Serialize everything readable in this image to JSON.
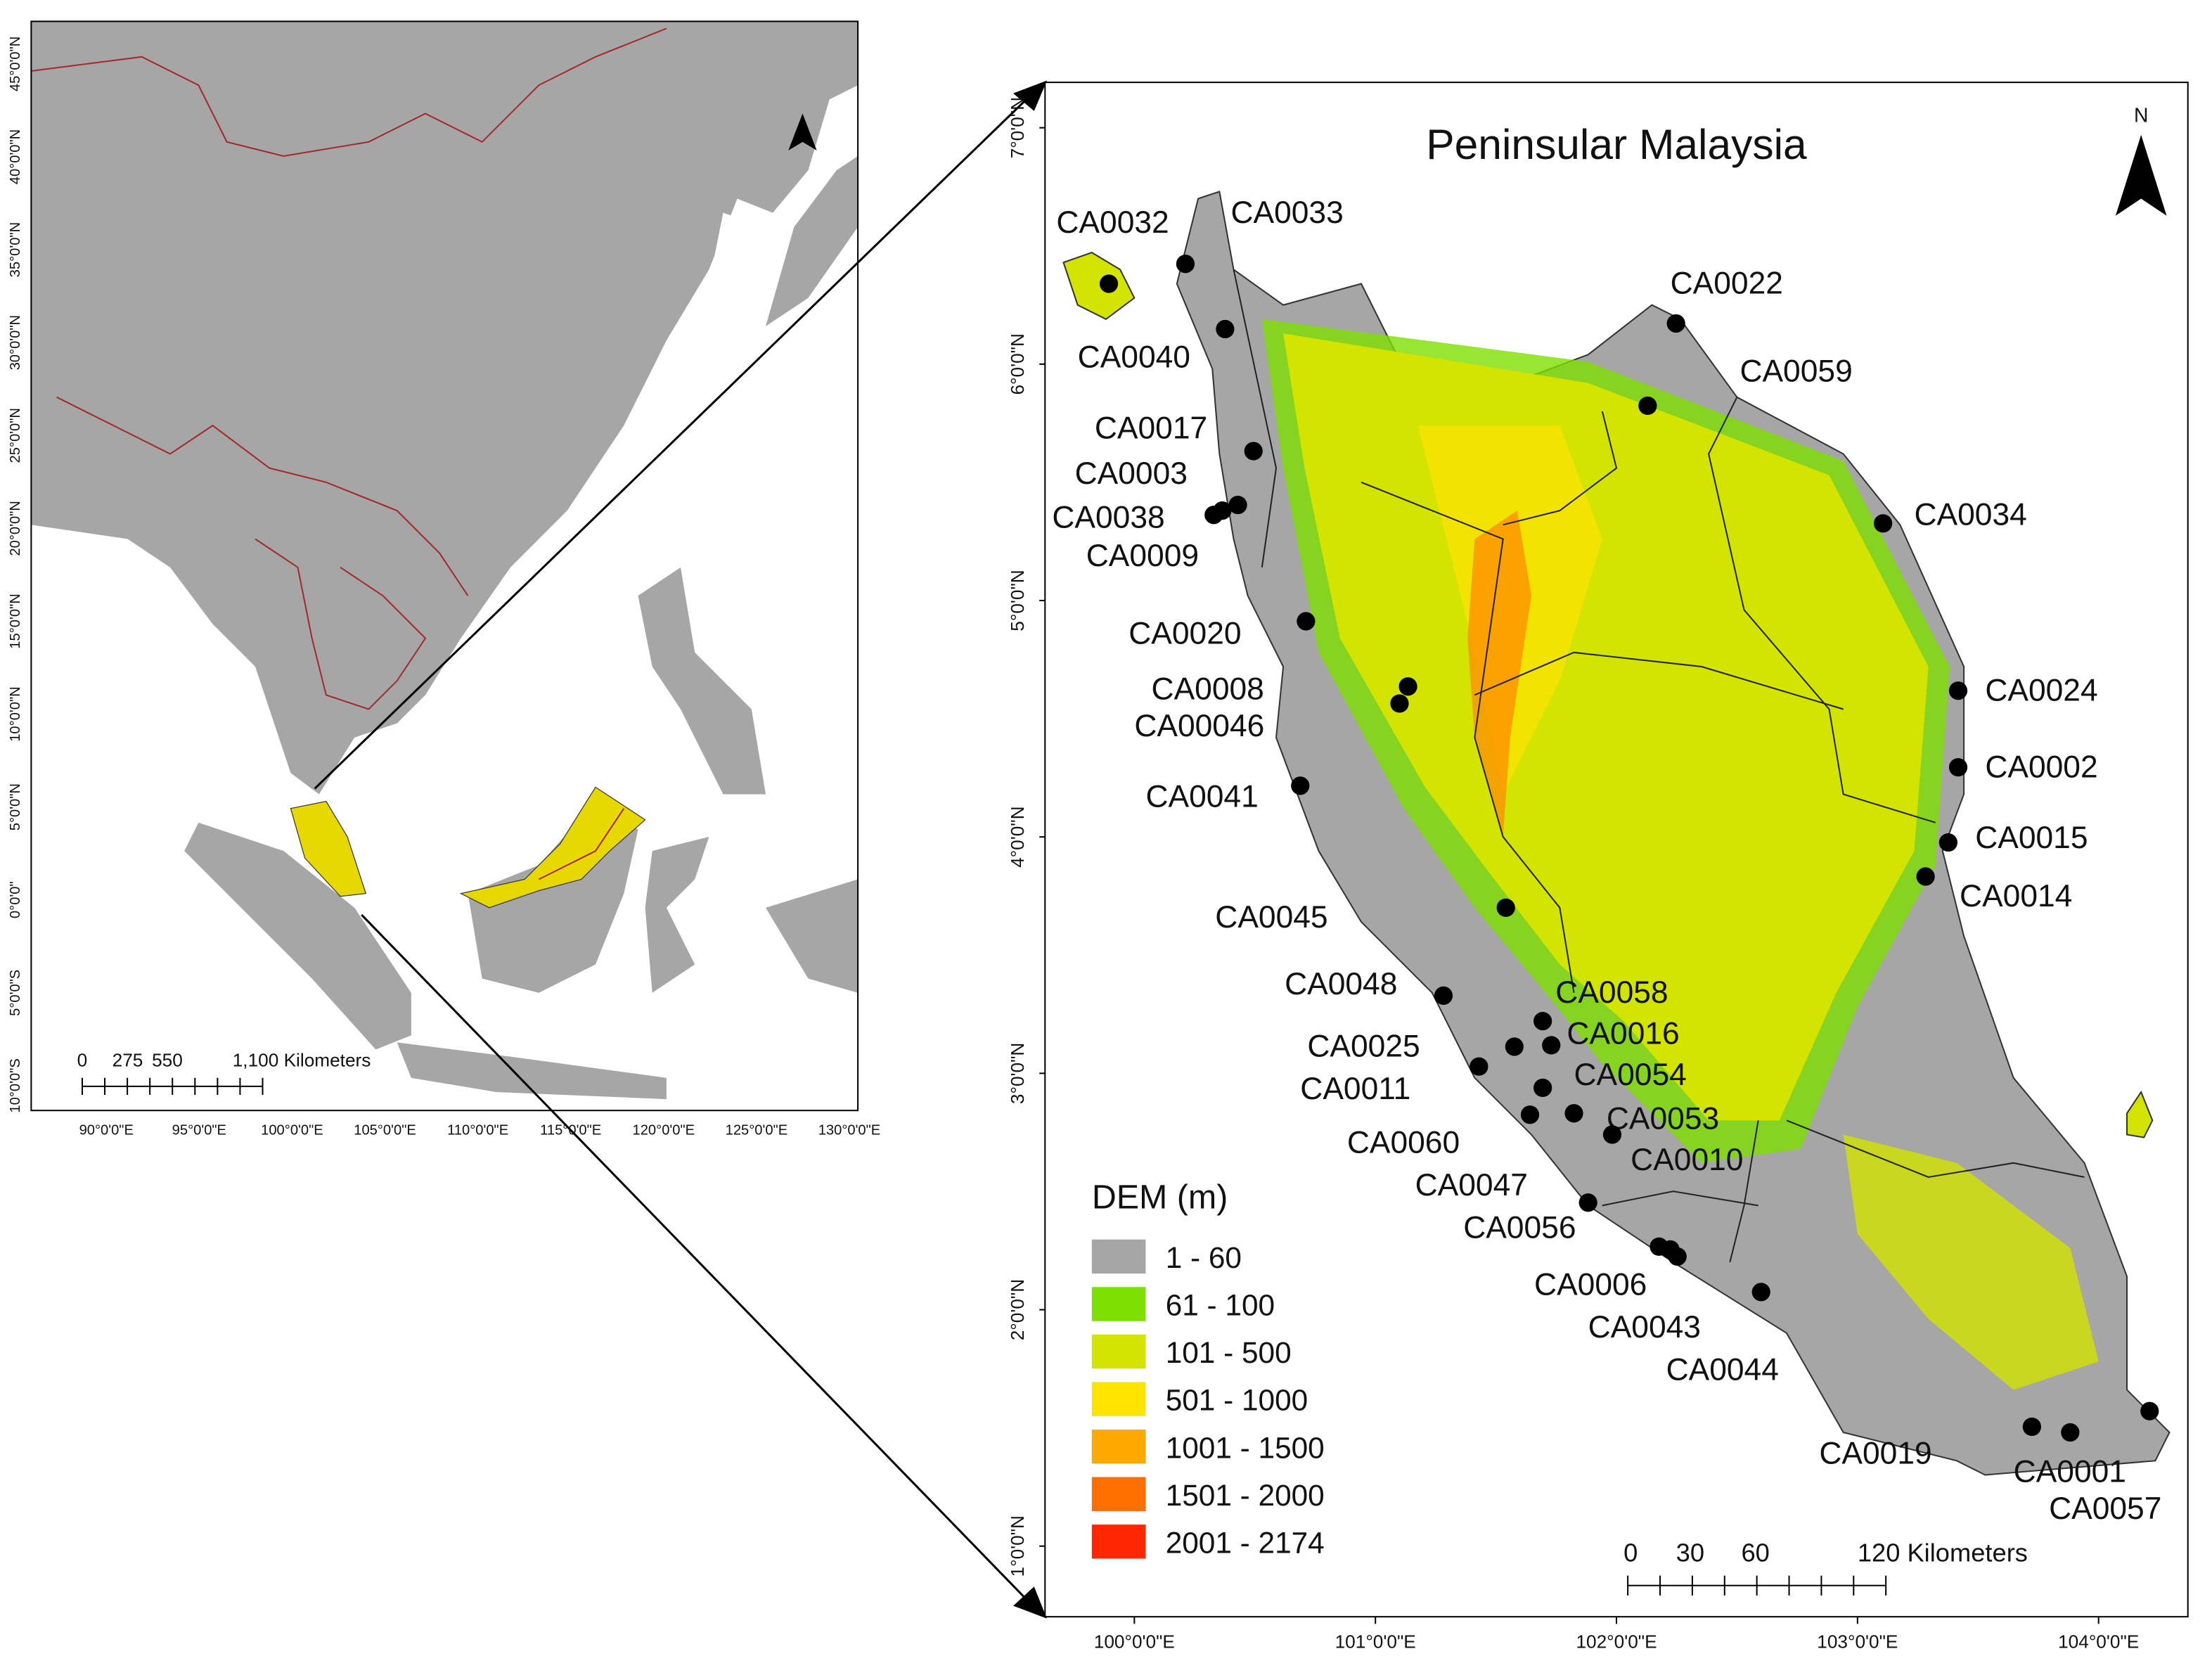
{
  "left_map": {
    "lat_labels": [
      "45°0'0\"N",
      "40°0'0\"N",
      "35°0'0\"N",
      "30°0'0\"N",
      "25°0'0\"N",
      "20°0'0\"N",
      "15°0'0\"N",
      "10°0'0\"N",
      "5°0'0\"N",
      "0°0'0\"",
      "5°0'0\"S",
      "10°0'0\"S"
    ],
    "lon_labels": [
      "90°0'0\"E",
      "95°0'0\"E",
      "100°0'0\"E",
      "105°0'0\"E",
      "110°0'0\"E",
      "115°0'0\"E",
      "120°0'0\"E",
      "125°0'0\"E",
      "130°0'0\"E"
    ],
    "scale_bar": [
      "0",
      "275",
      "550",
      "1,100 Kilometers"
    ]
  },
  "right_map": {
    "title": "Peninsular Malaysia",
    "north": "N",
    "lat_labels": [
      "7°0'0\"N",
      "6°0'0\"N",
      "5°0'0\"N",
      "4°0'0\"N",
      "3°0'0\"N",
      "2°0'0\"N",
      "1°0'0\"N"
    ],
    "lon_labels": [
      "100°0'0\"E",
      "101°0'0\"E",
      "102°0'0\"E",
      "103°0'0\"E",
      "104°0'0\"E"
    ],
    "scale_bar": [
      "0",
      "30",
      "60",
      "120 Kilometers"
    ],
    "legend": {
      "title": "DEM (m)",
      "items": [
        {
          "label": "1 - 60",
          "color": "#a6a6a6"
        },
        {
          "label": "61 - 100",
          "color": "#7ee000"
        },
        {
          "label": "101 - 500",
          "color": "#d2e400"
        },
        {
          "label": "501 - 1000",
          "color": "#ffe400"
        },
        {
          "label": "1001 - 1500",
          "color": "#ffa800"
        },
        {
          "label": "1501 - 2000",
          "color": "#ff6e00"
        },
        {
          "label": "2001 - 2174",
          "color": "#ff2600"
        }
      ]
    },
    "stations": [
      "CA0032",
      "CA0033",
      "CA0040",
      "CA0017",
      "CA0003",
      "CA0038",
      "CA0009",
      "CA0020",
      "CA0008",
      "CA00046",
      "CA0041",
      "CA0045",
      "CA0048",
      "CA0025",
      "CA0011",
      "CA0060",
      "CA0047",
      "CA0056",
      "CA0006",
      "CA0043",
      "CA0044",
      "CA0058",
      "CA0016",
      "CA0054",
      "CA0053",
      "CA0010",
      "CA0022",
      "CA0059",
      "CA0034",
      "CA0024",
      "CA0002",
      "CA0015",
      "CA0014",
      "CA0019",
      "CA0001",
      "CA0057"
    ]
  }
}
